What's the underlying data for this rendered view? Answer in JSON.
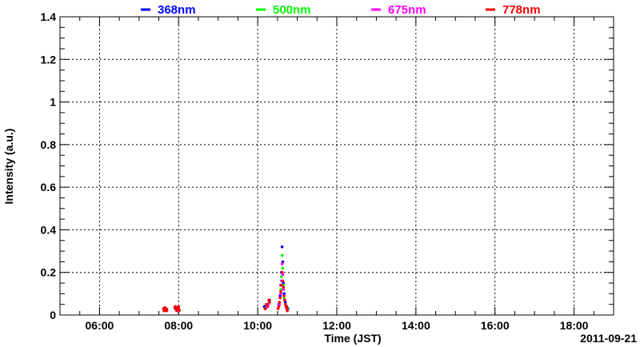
{
  "chart_data": {
    "type": "scatter",
    "title": "",
    "xlabel": "Time (JST)",
    "ylabel": "Intensity (a.u.)",
    "date_label": "2011-09-21",
    "xlim": [
      "05:00",
      "19:00"
    ],
    "ylim": [
      0,
      1.4
    ],
    "grid": true,
    "legend_position": "top",
    "x_ticks": [
      "06:00",
      "08:00",
      "10:00",
      "12:00",
      "14:00",
      "16:00",
      "18:00"
    ],
    "y_ticks": [
      "0",
      "0.2",
      "0.4",
      "0.6",
      "0.8",
      "1",
      "1.2",
      "1.4"
    ],
    "series": [
      {
        "name": "368nm",
        "color": "#0000ff",
        "points": [
          [
            "07:38",
            0.02
          ],
          [
            "07:40",
            0.03
          ],
          [
            "07:42",
            0.025
          ],
          [
            "07:55",
            0.03
          ],
          [
            "07:58",
            0.02
          ],
          [
            "08:00",
            0.03
          ],
          [
            "10:10",
            0.04
          ],
          [
            "10:12",
            0.03
          ],
          [
            "10:16",
            0.05
          ],
          [
            "10:18",
            0.07
          ],
          [
            "10:32",
            0.05
          ],
          [
            "10:34",
            0.09
          ],
          [
            "10:35",
            0.14
          ],
          [
            "10:36",
            0.2
          ],
          [
            "10:37",
            0.32
          ],
          [
            "10:38",
            0.25
          ],
          [
            "10:39",
            0.15
          ],
          [
            "10:40",
            0.1
          ],
          [
            "10:42",
            0.06
          ],
          [
            "10:44",
            0.04
          ],
          [
            "10:46",
            0.03
          ]
        ]
      },
      {
        "name": "500nm",
        "color": "#00ff00",
        "points": [
          [
            "07:38",
            0.02
          ],
          [
            "07:41",
            0.03
          ],
          [
            "07:56",
            0.03
          ],
          [
            "07:59",
            0.025
          ],
          [
            "08:01",
            0.02
          ],
          [
            "10:11",
            0.03
          ],
          [
            "10:14",
            0.04
          ],
          [
            "10:17",
            0.06
          ],
          [
            "10:33",
            0.06
          ],
          [
            "10:35",
            0.12
          ],
          [
            "10:36",
            0.18
          ],
          [
            "10:37",
            0.28
          ],
          [
            "10:38",
            0.22
          ],
          [
            "10:39",
            0.14
          ],
          [
            "10:40",
            0.08
          ],
          [
            "10:42",
            0.05
          ],
          [
            "10:45",
            0.03
          ]
        ]
      },
      {
        "name": "675nm",
        "color": "#ff00ff",
        "points": [
          [
            "07:39",
            0.02
          ],
          [
            "07:41",
            0.03
          ],
          [
            "07:57",
            0.03
          ],
          [
            "08:00",
            0.02
          ],
          [
            "10:12",
            0.03
          ],
          [
            "10:16",
            0.05
          ],
          [
            "10:33",
            0.05
          ],
          [
            "10:35",
            0.1
          ],
          [
            "10:36",
            0.16
          ],
          [
            "10:37",
            0.24
          ],
          [
            "10:38",
            0.19
          ],
          [
            "10:39",
            0.12
          ],
          [
            "10:41",
            0.07
          ],
          [
            "10:43",
            0.04
          ]
        ]
      },
      {
        "name": "778nm",
        "color": "#ff0000",
        "points": [
          [
            "07:37",
            0.03
          ],
          [
            "07:38",
            0.02
          ],
          [
            "07:39",
            0.035
          ],
          [
            "07:40",
            0.025
          ],
          [
            "07:41",
            0.03
          ],
          [
            "07:42",
            0.02
          ],
          [
            "07:54",
            0.035
          ],
          [
            "07:55",
            0.04
          ],
          [
            "07:56",
            0.03
          ],
          [
            "07:57",
            0.02
          ],
          [
            "07:58",
            0.035
          ],
          [
            "07:59",
            0.03
          ],
          [
            "08:00",
            0.04
          ],
          [
            "08:01",
            0.025
          ],
          [
            "10:11",
            0.03
          ],
          [
            "10:13",
            0.05
          ],
          [
            "10:15",
            0.04
          ],
          [
            "10:17",
            0.07
          ],
          [
            "10:18",
            0.06
          ],
          [
            "10:31",
            0.03
          ],
          [
            "10:32",
            0.04
          ],
          [
            "10:33",
            0.06
          ],
          [
            "10:34",
            0.08
          ],
          [
            "10:35",
            0.11
          ],
          [
            "10:36",
            0.14
          ],
          [
            "10:37",
            0.2
          ],
          [
            "10:38",
            0.16
          ],
          [
            "10:39",
            0.13
          ],
          [
            "10:40",
            0.09
          ],
          [
            "10:41",
            0.07
          ],
          [
            "10:42",
            0.05
          ],
          [
            "10:43",
            0.04
          ],
          [
            "10:44",
            0.03
          ],
          [
            "10:45",
            0.02
          ]
        ]
      }
    ]
  }
}
